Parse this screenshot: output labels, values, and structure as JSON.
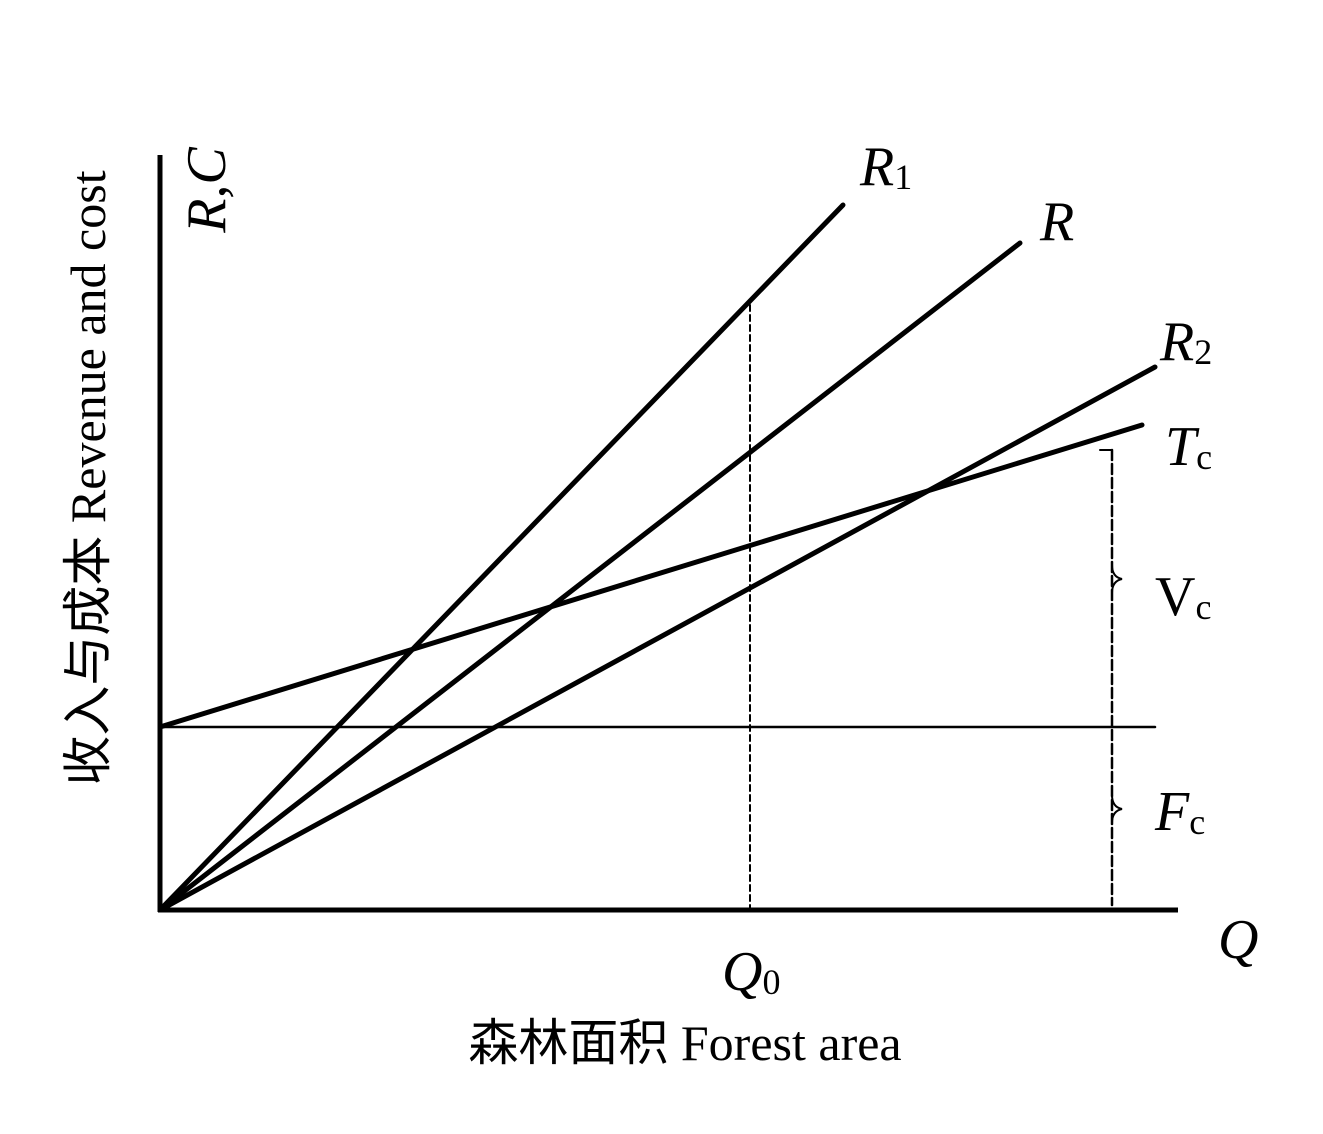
{
  "axes": {
    "y_symbol": "R,C",
    "y_title": "收入与成本 Revenue and cost",
    "x_symbol": "Q",
    "x_title": "森林面积 Forest area",
    "q0": {
      "main": "Q",
      "sub": "0"
    }
  },
  "lines": [
    {
      "main": "R",
      "sub": "1"
    },
    {
      "main": "R"
    },
    {
      "main": "R",
      "sub": "2"
    },
    {
      "main": "T",
      "sub": "c"
    }
  ],
  "segments": [
    {
      "main": "V",
      "sub": "c"
    },
    {
      "main": "F",
      "sub": "c"
    }
  ]
}
